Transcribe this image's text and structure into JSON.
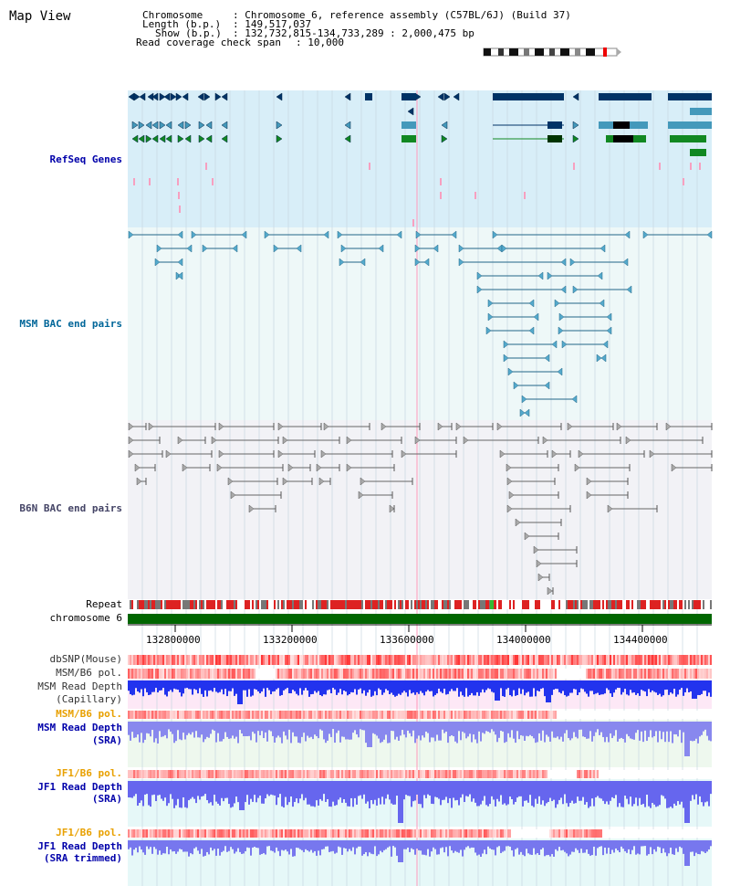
{
  "page": {
    "title": "Map View"
  },
  "header": {
    "chromosome_label": "Chromosome",
    "chromosome_value": ": Chromosome 6, reference assembly (C57BL/6J) (Build 37)",
    "length_label": "Length (b.p.)",
    "length_value": ": 149,517,037",
    "show_label": "Show (b.p.)",
    "show_value": ": 132,732,815-134,733,289 : 2,000,475 bp",
    "coverage_label": "Read coverage check span",
    "coverage_value": ": 10,000"
  },
  "tracks": {
    "refseq": "RefSeq Genes",
    "msm_bac": "MSM BAC end pairs",
    "b6n_bac": "B6N BAC end pairs",
    "repeat": "Repeat",
    "chromosome": "chromosome 6",
    "dbsnp": "dbSNP(Mouse)",
    "msm_b6_pol_1": "MSM/B6 pol.",
    "msm_read_depth_cap_1": "MSM Read Depth",
    "msm_read_depth_cap_2": "(Capillary)",
    "msm_b6_pol_2": "MSM/B6 pol.",
    "msm_read_depth_sra_1": "MSM Read Depth",
    "msm_read_depth_sra_2": "(SRA)",
    "jf1_b6_pol_1": "JF1/B6 pol.",
    "jf1_read_depth_sra_1": "JF1 Read Depth",
    "jf1_read_depth_sra_2": "(SRA)",
    "jf1_b6_pol_2": "JF1/B6 pol.",
    "jf1_read_depth_trim_1": "JF1 Read Depth",
    "jf1_read_depth_trim_2": "(SRA trimmed)"
  },
  "axis": {
    "ticks": [
      "132800000",
      "133200000",
      "133600000",
      "134000000",
      "134400000"
    ]
  },
  "colors": {
    "refseq_bg": "#d8eef8",
    "bac_bg": "#eef8f8",
    "b6n_bg": "#f2f2f6",
    "gene_dark": "#003366",
    "gene_mid": "#4499bb",
    "gene_green": "#118822",
    "msm_line": "#226688",
    "b6n_line": "#666666",
    "chromosome": "#006600",
    "depth_blue": "#2233ee"
  }
}
